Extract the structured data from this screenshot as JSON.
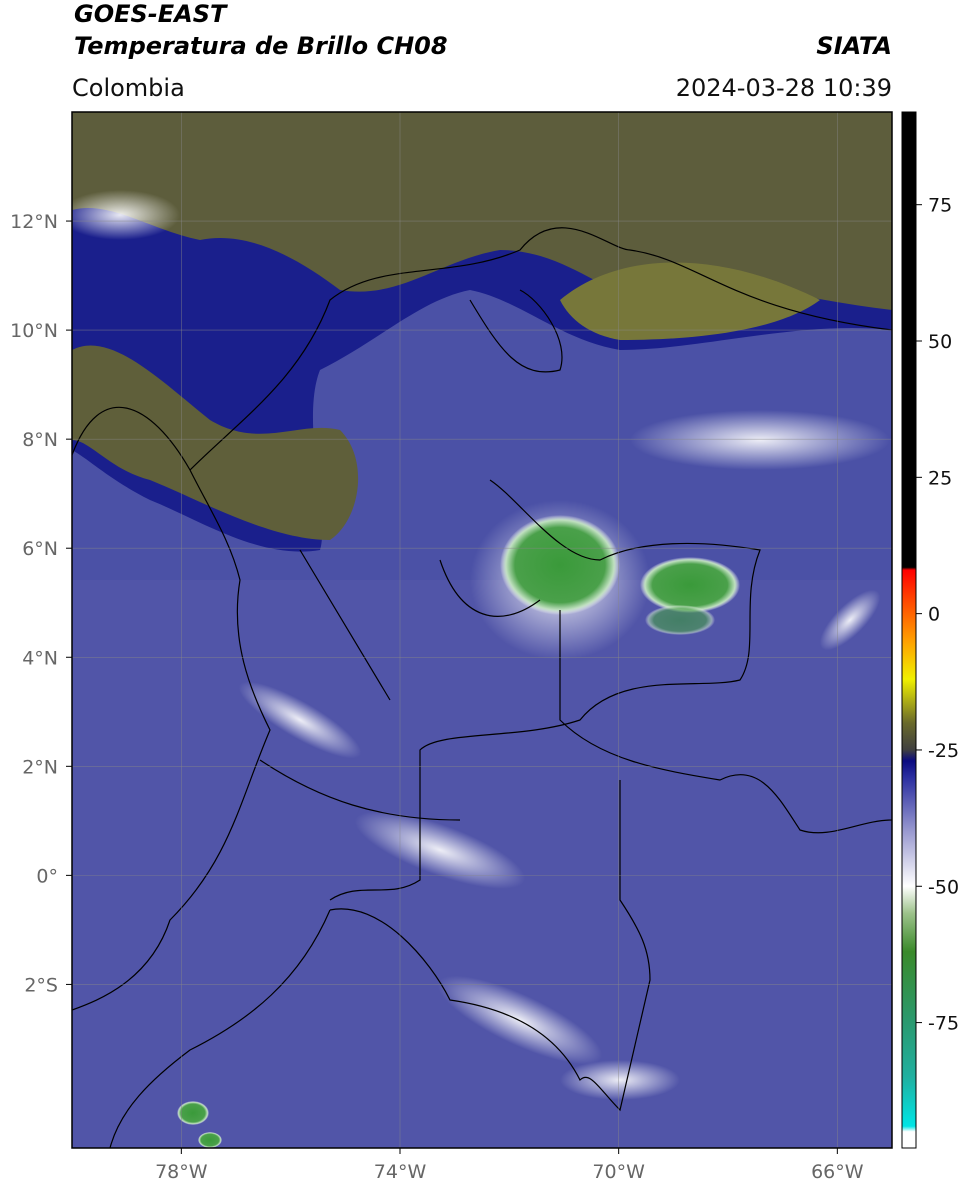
{
  "header": {
    "title": "GOES-EAST",
    "subtitle": "Temperatura de Brillo CH08",
    "source": "SIATA",
    "region": "Colombia",
    "datetime": "2024-03-28 10:39"
  },
  "map": {
    "xlim": [
      -80,
      -65
    ],
    "ylim": [
      -5,
      14
    ],
    "xticks": [
      {
        "value": -78,
        "label": "78°W"
      },
      {
        "value": -74,
        "label": "74°W"
      },
      {
        "value": -70,
        "label": "70°W"
      },
      {
        "value": -66,
        "label": "66°W"
      }
    ],
    "yticks": [
      {
        "value": 12,
        "label": "12°N"
      },
      {
        "value": 10,
        "label": "10°N"
      },
      {
        "value": 8,
        "label": "8°N"
      },
      {
        "value": 6,
        "label": "6°N"
      },
      {
        "value": 4,
        "label": "4°N"
      },
      {
        "value": 2,
        "label": "2°N"
      },
      {
        "value": 0,
        "label": "0°"
      },
      {
        "value": -2,
        "label": "2°S"
      }
    ],
    "grid": true
  },
  "colorbar": {
    "lim": [
      -98,
      92
    ],
    "ticks": [
      75,
      50,
      25,
      0,
      -25,
      -50,
      -75
    ],
    "stops": [
      {
        "value": -98,
        "color": "#ffffff"
      },
      {
        "value": -95,
        "color": "#ffffff"
      },
      {
        "value": -94,
        "color": "#00e5e5"
      },
      {
        "value": -85,
        "color": "#20b0a0"
      },
      {
        "value": -75,
        "color": "#2a9a70"
      },
      {
        "value": -62,
        "color": "#3a8a2a"
      },
      {
        "value": -55,
        "color": "#9cc28a"
      },
      {
        "value": -50,
        "color": "#ffffff"
      },
      {
        "value": -40,
        "color": "#9a9ad0"
      },
      {
        "value": -30,
        "color": "#2a2ea0"
      },
      {
        "value": -27,
        "color": "#0a0a80"
      },
      {
        "value": -25,
        "color": "#404040"
      },
      {
        "value": -20,
        "color": "#6a6a2a"
      },
      {
        "value": -12,
        "color": "#f0f000"
      },
      {
        "value": -5,
        "color": "#ffa000"
      },
      {
        "value": 3,
        "color": "#ff4000"
      },
      {
        "value": 8,
        "color": "#ff0000"
      },
      {
        "value": 8.5,
        "color": "#000000"
      },
      {
        "value": 92,
        "color": "#000000"
      }
    ]
  }
}
